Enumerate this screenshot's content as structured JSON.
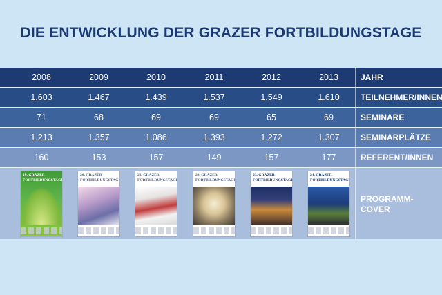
{
  "title": "DIE ENTWICKLUNG DER GRAZER FORTBILDUNGSTAGE",
  "chart_data": {
    "type": "table",
    "title": "DIE ENTWICKLUNG DER GRAZER FORTBILDUNGSTAGE",
    "columns": [
      "2008",
      "2009",
      "2010",
      "2011",
      "2012",
      "2013"
    ],
    "header_label": "JAHR",
    "rows": [
      {
        "label": "TEILNEHMER/INNEN",
        "values": [
          "1.603",
          "1.467",
          "1.439",
          "1.537",
          "1.549",
          "1.610"
        ]
      },
      {
        "label": "SEMINARE",
        "values": [
          "71",
          "68",
          "69",
          "69",
          "65",
          "69"
        ]
      },
      {
        "label": "SEMINARPLÄTZE",
        "values": [
          "1.213",
          "1.357",
          "1.086",
          "1.393",
          "1.272",
          "1.307"
        ]
      },
      {
        "label": "REFERENT/INNEN",
        "values": [
          "160",
          "153",
          "157",
          "149",
          "157",
          "177"
        ]
      }
    ],
    "cover_label_line1": "PROGRAMM-",
    "cover_label_line2": "COVER"
  },
  "covers": [
    {
      "year": "2008",
      "style": "green",
      "text": "19. GRAZER FORTBILDUNGSTAGE"
    },
    {
      "year": "2009",
      "style": "white-arch",
      "text": "20. GRAZER FORTBILDUNGSTAGE"
    },
    {
      "year": "2010",
      "style": "white-curve",
      "text": "21. GRAZER FORTBILDUNGSTAGE"
    },
    {
      "year": "2011",
      "style": "white-dome",
      "text": "22. GRAZER FORTBILDUNGSTAGE"
    },
    {
      "year": "2012",
      "style": "night-street",
      "text": "23. GRAZER FORTBILDUNGSTAGE"
    },
    {
      "year": "2013",
      "style": "night-kunsthaus",
      "text": "24. GRAZER FORTBILDUNGSTAGE"
    }
  ],
  "colors": {
    "background": "#cde5f5",
    "title": "#1b3a73",
    "row_header": "#1d3a72",
    "row_1": "#284d86",
    "row_2": "#3d639c",
    "row_3": "#5a7cb0",
    "row_4": "#7d97c4",
    "cover_row": "#a9bddc"
  }
}
